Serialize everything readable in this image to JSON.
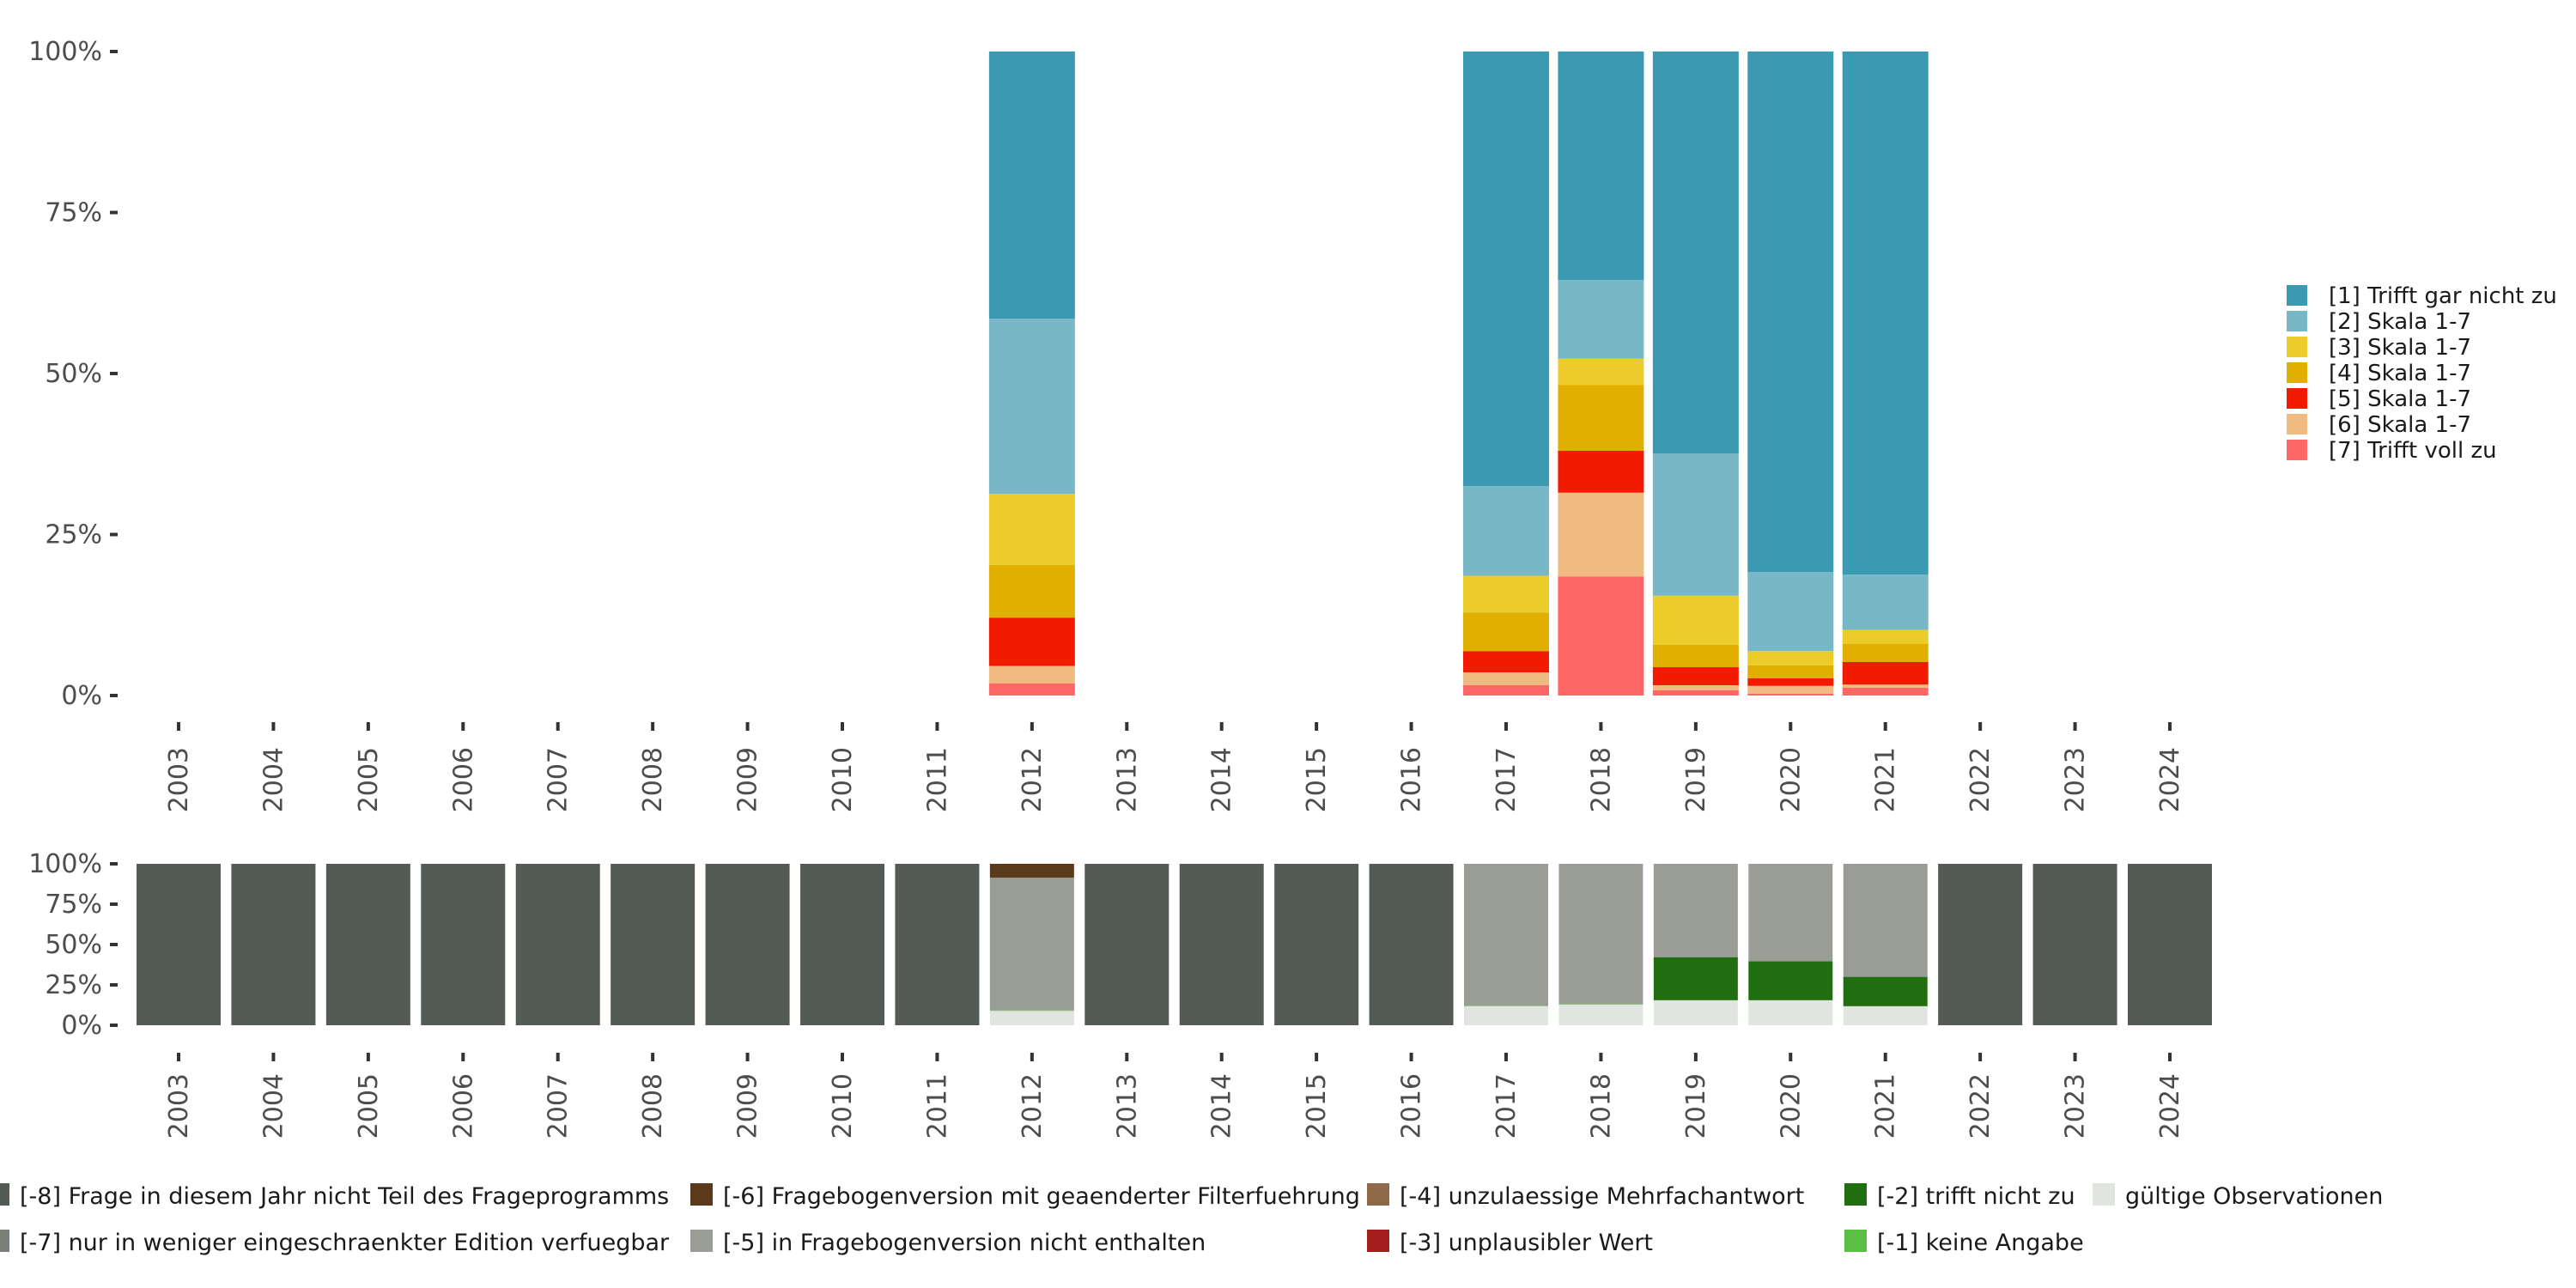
{
  "chart_data": [
    {
      "type": "bar",
      "stacked": true,
      "title": "",
      "xlabel": "",
      "ylabel": "",
      "ylim": [
        0,
        100
      ],
      "yticks": [
        "0%",
        "25%",
        "50%",
        "75%",
        "100%"
      ],
      "categories": [
        "2003",
        "2004",
        "2005",
        "2006",
        "2007",
        "2008",
        "2009",
        "2010",
        "2011",
        "2012",
        "2013",
        "2014",
        "2015",
        "2016",
        "2017",
        "2018",
        "2019",
        "2020",
        "2021",
        "2022",
        "2023",
        "2024"
      ],
      "legend_position": "right",
      "series": [
        {
          "name": "[7] Trifft voll zu",
          "color": "#FF6666",
          "values": [
            null,
            null,
            null,
            null,
            null,
            null,
            null,
            null,
            null,
            1.9,
            null,
            null,
            null,
            null,
            1.6,
            18.5,
            0.8,
            0.3,
            1.2,
            null,
            null,
            null
          ]
        },
        {
          "name": "[6] Skala 1-7",
          "color": "#F0BB80",
          "values": [
            null,
            null,
            null,
            null,
            null,
            null,
            null,
            null,
            null,
            2.7,
            null,
            null,
            null,
            null,
            2.0,
            13.0,
            0.8,
            1.2,
            0.5,
            null,
            null,
            null
          ]
        },
        {
          "name": "[5] Skala 1-7",
          "color": "#F21B00",
          "values": [
            null,
            null,
            null,
            null,
            null,
            null,
            null,
            null,
            null,
            7.5,
            null,
            null,
            null,
            null,
            3.3,
            6.5,
            2.8,
            1.2,
            3.5,
            null,
            null,
            null
          ]
        },
        {
          "name": "[4] Skala 1-7",
          "color": "#E0AF00",
          "values": [
            null,
            null,
            null,
            null,
            null,
            null,
            null,
            null,
            null,
            8.2,
            null,
            null,
            null,
            null,
            6.0,
            10.2,
            3.5,
            2.0,
            2.8,
            null,
            null,
            null
          ]
        },
        {
          "name": "[3] Skala 1-7",
          "color": "#EBCC2A",
          "values": [
            null,
            null,
            null,
            null,
            null,
            null,
            null,
            null,
            null,
            11.0,
            null,
            null,
            null,
            null,
            5.7,
            4.1,
            7.6,
            2.2,
            2.2,
            null,
            null,
            null
          ]
        },
        {
          "name": "[2] Skala 1-7",
          "color": "#78B7C5",
          "values": [
            null,
            null,
            null,
            null,
            null,
            null,
            null,
            null,
            null,
            27.2,
            null,
            null,
            null,
            null,
            13.9,
            12.2,
            22.1,
            12.3,
            8.6,
            null,
            null,
            null
          ]
        },
        {
          "name": "[1] Trifft gar nicht zu",
          "color": "#3B9AB2",
          "values": [
            null,
            null,
            null,
            null,
            null,
            null,
            null,
            null,
            null,
            41.5,
            null,
            null,
            null,
            null,
            67.5,
            35.5,
            62.4,
            80.8,
            81.2,
            null,
            null,
            null
          ]
        }
      ]
    },
    {
      "type": "bar",
      "stacked": true,
      "title": "",
      "xlabel": "",
      "ylabel": "",
      "ylim": [
        0,
        100
      ],
      "yticks": [
        "0%",
        "25%",
        "50%",
        "75%",
        "100%"
      ],
      "categories": [
        "2003",
        "2004",
        "2005",
        "2006",
        "2007",
        "2008",
        "2009",
        "2010",
        "2011",
        "2012",
        "2013",
        "2014",
        "2015",
        "2016",
        "2017",
        "2018",
        "2019",
        "2020",
        "2021",
        "2022",
        "2023",
        "2024"
      ],
      "legend_position": "bottom",
      "legend_order": [
        "[-8] Frage in diesem Jahr nicht Teil des Frageprogramms",
        "[-6] Fragebogenversion mit geaenderter Filterfuehrung",
        "[-4] unzulaessige Mehrfachantwort",
        "[-2] trifft nicht zu",
        "gültige Observationen",
        "[-7] nur in weniger eingeschraenkter Edition verfuegbar",
        "[-5] in Fragebogenversion nicht enthalten",
        "[-3] unplausibler Wert",
        "[-1] keine Angabe"
      ],
      "series": [
        {
          "name": "gültige Observationen",
          "color": "#E1E5E0",
          "values": [
            0,
            0,
            0,
            0,
            0,
            0,
            0,
            0,
            0,
            8.9,
            0,
            0,
            0,
            0,
            11.8,
            12.8,
            15.5,
            15.5,
            11.8,
            0,
            0,
            0
          ]
        },
        {
          "name": "[-1] keine Angabe",
          "color": "#5BBF45",
          "values": [
            0,
            0,
            0,
            0,
            0,
            0,
            0,
            0,
            0,
            0.3,
            0,
            0,
            0,
            0,
            0.3,
            0.3,
            0,
            0,
            0,
            0,
            0,
            0
          ]
        },
        {
          "name": "[-2] trifft nicht zu",
          "color": "#216E10",
          "values": [
            0,
            0,
            0,
            0,
            0,
            0,
            0,
            0,
            0,
            0,
            0,
            0,
            0,
            0,
            0,
            0,
            26.7,
            24.1,
            18.2,
            0,
            0,
            0
          ]
        },
        {
          "name": "[-3] unplausibler Wert",
          "color": "#A51C1C",
          "values": [
            0,
            0,
            0,
            0,
            0,
            0,
            0,
            0,
            0,
            0,
            0,
            0,
            0,
            0,
            0,
            0,
            0,
            0,
            0,
            0,
            0,
            0
          ]
        },
        {
          "name": "[-4] unzulaessige Mehrfachantwort",
          "color": "#8E6A48",
          "values": [
            0,
            0,
            0,
            0,
            0,
            0,
            0,
            0,
            0,
            0,
            0,
            0,
            0,
            0,
            0,
            0,
            0,
            0,
            0,
            0,
            0,
            0
          ]
        },
        {
          "name": "[-5] in Fragebogenversion nicht enthalten",
          "color": "#9A9D96",
          "values": [
            0,
            0,
            0,
            0,
            0,
            0,
            0,
            0,
            0,
            82.2,
            0,
            0,
            0,
            0,
            87.9,
            86.9,
            57.8,
            60.4,
            70.0,
            0,
            0,
            0
          ]
        },
        {
          "name": "[-6] Fragebogenversion mit geaenderter Filterfuehrung",
          "color": "#5A3A1A",
          "values": [
            0,
            0,
            0,
            0,
            0,
            0,
            0,
            0,
            0,
            8.6,
            0,
            0,
            0,
            0,
            0,
            0,
            0,
            0,
            0,
            0,
            0,
            0
          ]
        },
        {
          "name": "[-7] nur in weniger eingeschraenkter Edition verfuegbar",
          "color": "#7A7F78",
          "values": [
            0,
            0,
            0,
            0,
            0,
            0,
            0,
            0,
            0,
            0,
            0,
            0,
            0,
            0,
            0,
            0,
            0,
            0,
            0,
            0,
            0,
            0
          ]
        },
        {
          "name": "[-8] Frage in diesem Jahr nicht Teil des Frageprogramms",
          "color": "#545B54",
          "values": [
            100,
            100,
            100,
            100,
            100,
            100,
            100,
            100,
            100,
            0,
            100,
            100,
            100,
            100,
            0,
            0,
            0,
            0,
            0,
            100,
            100,
            100
          ]
        }
      ]
    }
  ]
}
